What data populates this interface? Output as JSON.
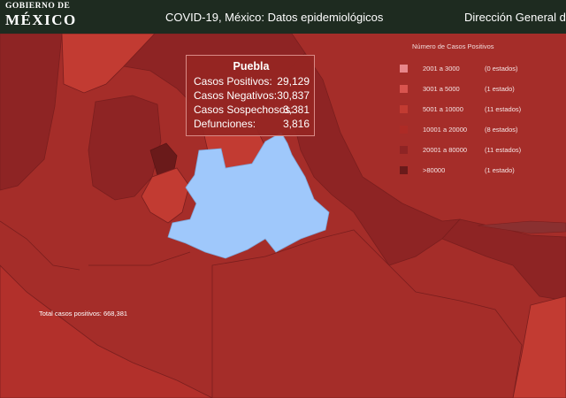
{
  "header": {
    "logo_line1": "GOBIERNO DE",
    "logo_line2": "MÉXICO",
    "title": "COVID-19, México: Datos epidemiológicos",
    "agency": "Dirección General de"
  },
  "colors": {
    "header_bg": "#1e2b20",
    "selected_state": "#9fc8fb",
    "class_2001_3000": "#e8868a",
    "class_3001_5000": "#d9544f",
    "class_5001_10000": "#c23b32",
    "class_10001_20000": "#ad2b26",
    "class_20001_80000": "#8e2424",
    "class_gt_80000": "#6a1a1a"
  },
  "legend": {
    "title": "Número de Casos Positivos",
    "items": [
      {
        "range": "2001 a   3000",
        "count": "(0 estados)",
        "color": "#e8868a"
      },
      {
        "range": "3001 a   5000",
        "count": "(1 estado)",
        "color": "#d9544f"
      },
      {
        "range": "5001 a  10000",
        "count": "(11 estados)",
        "color": "#c23b32"
      },
      {
        "range": "10001 a  20000",
        "count": "(8 estados)",
        "color": "#ad2b26"
      },
      {
        "range": "20001 a  80000",
        "count": "(11 estados)",
        "color": "#8e2424"
      },
      {
        "range": ">80000",
        "count": "(1 estado)",
        "color": "#6a1a1a"
      }
    ]
  },
  "tooltip": {
    "state": "Puebla",
    "rows": [
      {
        "label": "Casos Positivos:",
        "value": "29,129"
      },
      {
        "label": "Casos Negativos:",
        "value": "30,837"
      },
      {
        "label": "Casos Sospechosos:",
        "value": "3,381"
      },
      {
        "label": "Defunciones:",
        "value": "3,816"
      }
    ]
  },
  "footer": {
    "total_cases": "Total casos positivos: 668,381"
  }
}
